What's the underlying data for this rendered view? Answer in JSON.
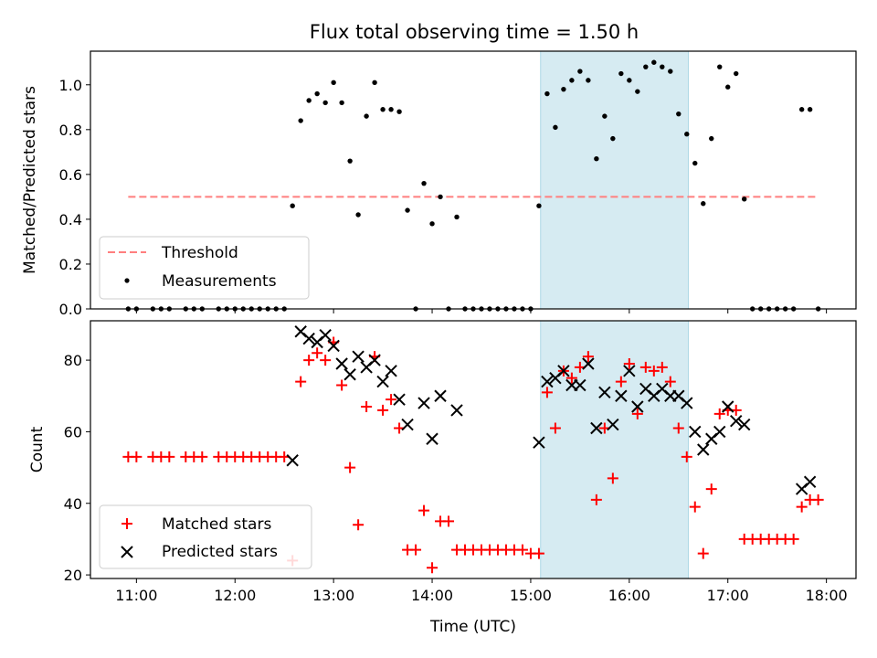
{
  "figure": {
    "title": "Flux total observing time = 1.50 h"
  },
  "chart_data": [
    {
      "type": "scatter",
      "ylabel": "Matched/Predicted stars",
      "xlabel": "",
      "xlim": [
        "10:32",
        "18:18"
      ],
      "ylim": [
        0,
        1.15
      ],
      "yticks": [
        "0.0",
        "0.2",
        "0.4",
        "0.6",
        "0.8",
        "1.0"
      ],
      "highlight_span": [
        "15:06",
        "16:36"
      ],
      "legend_placement": "lower-left",
      "series": [
        {
          "name": "Threshold",
          "kind": "dashed-line",
          "color": "#ff7f7f",
          "x": [
            "10:55",
            "17:55"
          ],
          "y": [
            0.5,
            0.5
          ]
        },
        {
          "name": "Measurements",
          "kind": "dot",
          "color": "#000000",
          "x": [
            "10:55",
            "11:00",
            "11:10",
            "11:15",
            "11:20",
            "11:30",
            "11:35",
            "11:40",
            "11:50",
            "11:55",
            "12:00",
            "12:05",
            "12:10",
            "12:15",
            "12:20",
            "12:25",
            "12:30",
            "12:35",
            "12:40",
            "12:45",
            "12:50",
            "12:55",
            "13:00",
            "13:05",
            "13:10",
            "13:15",
            "13:20",
            "13:25",
            "13:30",
            "13:35",
            "13:40",
            "13:45",
            "13:50",
            "13:55",
            "14:00",
            "14:05",
            "14:10",
            "14:15",
            "14:20",
            "14:25",
            "14:30",
            "14:35",
            "14:40",
            "14:45",
            "14:50",
            "14:55",
            "15:00",
            "15:05",
            "15:10",
            "15:15",
            "15:20",
            "15:25",
            "15:30",
            "15:35",
            "15:40",
            "15:45",
            "15:50",
            "15:55",
            "16:00",
            "16:05",
            "16:10",
            "16:15",
            "16:20",
            "16:25",
            "16:30",
            "16:35",
            "16:40",
            "16:45",
            "16:50",
            "16:55",
            "17:00",
            "17:05",
            "17:10",
            "17:15",
            "17:20",
            "17:25",
            "17:30",
            "17:35",
            "17:40",
            "17:45",
            "17:50",
            "17:55"
          ],
          "y": [
            0,
            0,
            0,
            0,
            0,
            0,
            0,
            0,
            0,
            0,
            0,
            0,
            0,
            0,
            0,
            0,
            0,
            0.46,
            0.84,
            0.93,
            0.96,
            0.92,
            1.01,
            0.92,
            0.66,
            0.42,
            0.86,
            1.01,
            0.89,
            0.89,
            0.88,
            0.44,
            0,
            0.56,
            0.38,
            0.5,
            0,
            0.41,
            0,
            0,
            0,
            0,
            0,
            0,
            0,
            0,
            0,
            0.46,
            0.96,
            0.81,
            0.98,
            1.02,
            1.06,
            1.02,
            0.67,
            0.86,
            0.76,
            1.05,
            1.02,
            0.97,
            1.08,
            1.1,
            1.08,
            1.06,
            0.87,
            0.78,
            0.65,
            0.47,
            0.76,
            1.08,
            0.99,
            1.05,
            0.49,
            0,
            0,
            0,
            0,
            0,
            0,
            0.89,
            0.89,
            0
          ]
        }
      ]
    },
    {
      "type": "scatter",
      "ylabel": "Count",
      "xlabel": "Time (UTC)",
      "xlim": [
        "10:32",
        "18:18"
      ],
      "ylim": [
        19,
        91
      ],
      "yticks": [
        "20",
        "40",
        "60",
        "80"
      ],
      "xticks": [
        "11:00",
        "12:00",
        "13:00",
        "14:00",
        "15:00",
        "16:00",
        "17:00",
        "18:00"
      ],
      "highlight_span": [
        "15:06",
        "16:36"
      ],
      "legend_placement": "lower-left",
      "series": [
        {
          "name": "Matched stars",
          "kind": "plus",
          "color": "#ff0000",
          "x": [
            "10:55",
            "11:00",
            "11:10",
            "11:15",
            "11:20",
            "11:30",
            "11:35",
            "11:40",
            "11:50",
            "11:55",
            "12:00",
            "12:05",
            "12:10",
            "12:15",
            "12:20",
            "12:25",
            "12:30",
            "12:35",
            "12:40",
            "12:45",
            "12:50",
            "12:55",
            "13:00",
            "13:05",
            "13:10",
            "13:15",
            "13:20",
            "13:25",
            "13:30",
            "13:35",
            "13:40",
            "13:45",
            "13:50",
            "13:55",
            "14:00",
            "14:05",
            "14:10",
            "14:15",
            "14:20",
            "14:25",
            "14:30",
            "14:35",
            "14:40",
            "14:45",
            "14:50",
            "14:55",
            "15:00",
            "15:05",
            "15:10",
            "15:15",
            "15:20",
            "15:25",
            "15:30",
            "15:35",
            "15:40",
            "15:45",
            "15:50",
            "15:55",
            "16:00",
            "16:05",
            "16:10",
            "16:15",
            "16:20",
            "16:25",
            "16:30",
            "16:35",
            "16:40",
            "16:45",
            "16:50",
            "16:55",
            "17:00",
            "17:05",
            "17:10",
            "17:15",
            "17:20",
            "17:25",
            "17:30",
            "17:35",
            "17:40",
            "17:45",
            "17:50",
            "17:55"
          ],
          "y": [
            53,
            53,
            53,
            53,
            53,
            53,
            53,
            53,
            53,
            53,
            53,
            53,
            53,
            53,
            53,
            53,
            53,
            24,
            74,
            80,
            82,
            80,
            85,
            73,
            50,
            34,
            67,
            81,
            66,
            69,
            61,
            27,
            27,
            38,
            22,
            35,
            35,
            27,
            27,
            27,
            27,
            27,
            27,
            27,
            27,
            27,
            26,
            26,
            71,
            61,
            77,
            75,
            78,
            81,
            41,
            61,
            47,
            74,
            79,
            65,
            78,
            77,
            78,
            74,
            61,
            53,
            39,
            26,
            44,
            65,
            66,
            66,
            30,
            30,
            30,
            30,
            30,
            30,
            30,
            39,
            41,
            41
          ]
        },
        {
          "name": "Predicted stars",
          "kind": "x",
          "color": "#000000",
          "x": [
            "12:35",
            "12:40",
            "12:45",
            "12:50",
            "12:55",
            "13:00",
            "13:05",
            "13:10",
            "13:15",
            "13:20",
            "13:25",
            "13:30",
            "13:35",
            "13:40",
            "13:45",
            "13:55",
            "14:00",
            "14:05",
            "14:15",
            "15:05",
            "15:10",
            "15:15",
            "15:20",
            "15:25",
            "15:30",
            "15:35",
            "15:40",
            "15:45",
            "15:50",
            "15:55",
            "16:00",
            "16:05",
            "16:10",
            "16:15",
            "16:20",
            "16:25",
            "16:30",
            "16:35",
            "16:40",
            "16:45",
            "16:50",
            "16:55",
            "17:00",
            "17:05",
            "17:10",
            "17:45",
            "17:50"
          ],
          "y": [
            52,
            88,
            86,
            85,
            87,
            84,
            79,
            76,
            81,
            78,
            80,
            74,
            77,
            69,
            62,
            68,
            58,
            70,
            66,
            57,
            74,
            75,
            77,
            73,
            73,
            79,
            61,
            71,
            62,
            70,
            77,
            67,
            72,
            70,
            72,
            70,
            70,
            68,
            60,
            55,
            58,
            60,
            67,
            63,
            62,
            44,
            46
          ]
        }
      ]
    }
  ]
}
